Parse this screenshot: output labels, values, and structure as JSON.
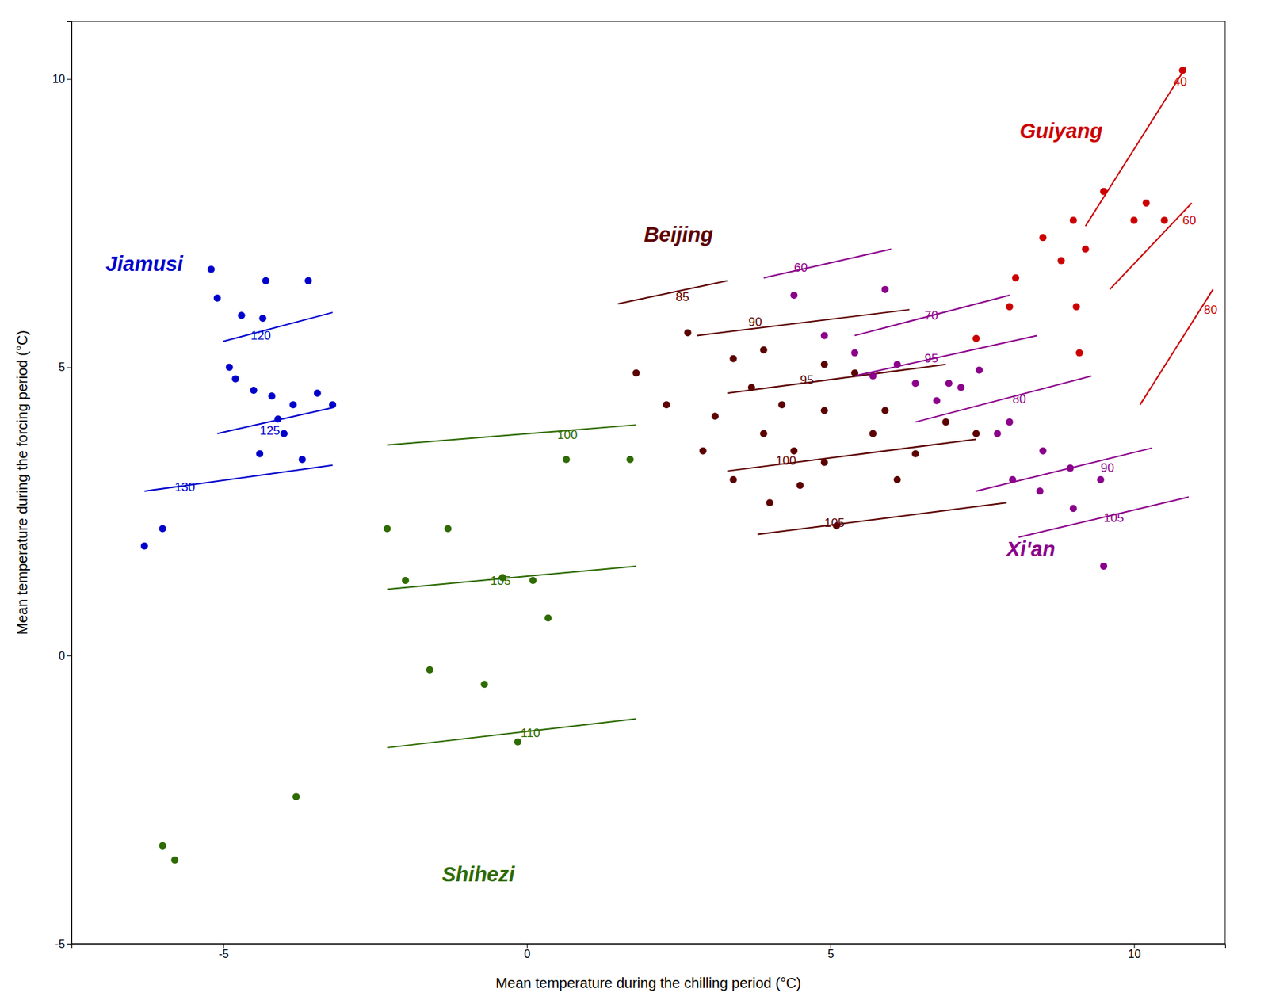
{
  "chart_data": {
    "type": "scatter",
    "xlabel": "Mean temperature during the chilling period (°C)",
    "ylabel": "Mean temperature during the forcing period (°C)",
    "xlim": [
      -7.5,
      11.5
    ],
    "ylim": [
      -5.0,
      11.0
    ],
    "xticks": [
      -5,
      0,
      5,
      10
    ],
    "yticks": [
      -5,
      0,
      5,
      10
    ],
    "grid": false,
    "series": [
      {
        "name": "Jiamusi",
        "color": "#0000CC",
        "label_x": -6.3,
        "label_y": 6.8,
        "x": [
          -6.3,
          -6.0,
          -5.2,
          -5.1,
          -4.9,
          -4.8,
          -4.7,
          -4.5,
          -4.4,
          -4.35,
          -4.3,
          -4.2,
          -4.1,
          -4.0,
          -3.85,
          -3.7,
          -3.6,
          -3.45,
          -3.2
        ],
        "y": [
          1.9,
          2.2,
          6.7,
          6.2,
          5.0,
          4.8,
          5.9,
          4.6,
          3.5,
          5.85,
          6.5,
          4.5,
          4.1,
          3.85,
          4.35,
          3.4,
          6.5,
          4.55,
          4.35
        ],
        "isolines": [
          {
            "label": "120",
            "x": [
              -5.0,
              -3.2
            ],
            "y": [
              5.45,
              5.95
            ],
            "label_x": -4.55,
            "label_y": 5.55
          },
          {
            "label": "125",
            "x": [
              -5.1,
              -3.2
            ],
            "y": [
              3.85,
              4.3
            ],
            "label_x": -4.4,
            "label_y": 3.9
          },
          {
            "label": "130",
            "x": [
              -6.3,
              -3.2
            ],
            "y": [
              2.85,
              3.3
            ],
            "label_x": -5.8,
            "label_y": 2.92
          }
        ]
      },
      {
        "name": "Shihezi",
        "color": "#2E6B00",
        "label_x": -0.8,
        "label_y": -3.8,
        "x": [
          -6.0,
          -5.8,
          -3.8,
          -2.3,
          -2.0,
          -1.6,
          -1.3,
          -0.7,
          -0.4,
          -0.15,
          0.1,
          0.35,
          0.65,
          1.7
        ],
        "y": [
          -3.3,
          -3.55,
          -2.45,
          2.2,
          1.3,
          -0.25,
          2.2,
          -0.5,
          1.35,
          -1.5,
          1.3,
          0.65,
          3.4,
          3.4
        ],
        "isolines": [
          {
            "label": "100",
            "x": [
              -2.3,
              1.8
            ],
            "y": [
              3.65,
              4.0
            ],
            "label_x": 0.5,
            "label_y": 3.83
          },
          {
            "label": "105",
            "x": [
              -2.3,
              1.8
            ],
            "y": [
              1.15,
              1.55
            ],
            "label_x": -0.6,
            "label_y": 1.3
          },
          {
            "label": "110",
            "x": [
              -2.3,
              1.8
            ],
            "y": [
              -1.6,
              -1.1
            ],
            "label_x": -0.1,
            "label_y": -1.35
          }
        ]
      },
      {
        "name": "Beijing",
        "color": "#5C0000",
        "label_x": 2.5,
        "label_y": 7.3,
        "x": [
          1.8,
          2.3,
          2.65,
          2.9,
          3.1,
          3.4,
          3.4,
          3.7,
          3.9,
          3.9,
          4.0,
          4.2,
          4.4,
          4.5,
          4.9,
          4.9,
          4.9,
          5.1,
          5.4,
          5.7,
          5.9,
          6.1,
          6.4,
          6.9,
          7.4
        ],
        "y": [
          4.9,
          4.35,
          5.6,
          3.55,
          4.15,
          5.15,
          3.05,
          4.65,
          5.3,
          3.85,
          2.65,
          4.35,
          3.55,
          2.95,
          5.05,
          4.25,
          3.35,
          2.25,
          4.9,
          3.85,
          4.25,
          3.05,
          3.5,
          4.05,
          3.85
        ],
        "isolines": [
          {
            "label": "85",
            "x": [
              1.5,
              3.3
            ],
            "y": [
              6.1,
              6.5
            ],
            "label_x": 2.45,
            "label_y": 6.22
          },
          {
            "label": "90",
            "x": [
              2.8,
              6.3
            ],
            "y": [
              5.55,
              6.0
            ],
            "label_x": 3.65,
            "label_y": 5.78
          },
          {
            "label": "95",
            "x": [
              3.3,
              6.9
            ],
            "y": [
              4.55,
              5.05
            ],
            "label_x": 4.5,
            "label_y": 4.78
          },
          {
            "label": "100",
            "x": [
              3.3,
              7.4
            ],
            "y": [
              3.2,
              3.75
            ],
            "label_x": 4.1,
            "label_y": 3.38
          },
          {
            "label": "105",
            "x": [
              3.8,
              7.9
            ],
            "y": [
              2.1,
              2.65
            ],
            "label_x": 4.9,
            "label_y": 2.3
          }
        ]
      },
      {
        "name": "Xi'an",
        "color": "#8B008B",
        "label_x": 8.3,
        "label_y": 1.85,
        "x": [
          4.4,
          4.9,
          5.4,
          5.7,
          5.9,
          6.1,
          6.4,
          6.75,
          6.95,
          7.15,
          7.45,
          7.75,
          7.95,
          8.0,
          8.45,
          8.5,
          8.95,
          9.0,
          9.45,
          9.5
        ],
        "y": [
          6.25,
          5.55,
          5.25,
          4.85,
          6.35,
          5.05,
          4.72,
          4.42,
          4.72,
          4.65,
          4.95,
          3.85,
          4.05,
          3.05,
          2.85,
          3.55,
          3.25,
          2.55,
          3.05,
          1.55
        ],
        "isolines": [
          {
            "label": "60",
            "x": [
              3.9,
              6.0
            ],
            "y": [
              6.55,
              7.05
            ],
            "label_x": 4.4,
            "label_y": 6.73
          },
          {
            "label": "70",
            "x": [
              5.4,
              7.95
            ],
            "y": [
              5.55,
              6.25
            ],
            "label_x": 6.55,
            "label_y": 5.9
          },
          {
            "label": "80",
            "x": [
              6.4,
              9.3
            ],
            "y": [
              4.05,
              4.85
            ],
            "label_x": 8.0,
            "label_y": 4.45
          },
          {
            "label": "90",
            "x": [
              7.4,
              10.3
            ],
            "y": [
              2.85,
              3.6
            ],
            "label_x": 9.45,
            "label_y": 3.25
          },
          {
            "label": "95",
            "x": [
              5.4,
              8.4
            ],
            "y": [
              4.85,
              5.55
            ],
            "label_x": 6.55,
            "label_y": 5.15
          },
          {
            "label": "105",
            "x": [
              8.1,
              10.9
            ],
            "y": [
              2.05,
              2.75
            ],
            "label_x": 9.5,
            "label_y": 2.38
          }
        ]
      },
      {
        "name": "Guiyang",
        "color": "#CC0000",
        "label_x": 8.8,
        "label_y": 9.1,
        "x": [
          7.4,
          7.95,
          8.05,
          8.5,
          8.8,
          9.0,
          9.05,
          9.1,
          9.2,
          9.5,
          10.0,
          10.2,
          10.5,
          10.8
        ],
        "y": [
          5.5,
          6.05,
          6.55,
          7.25,
          6.85,
          7.55,
          6.05,
          5.25,
          7.05,
          8.05,
          7.55,
          7.85,
          7.55,
          10.15
        ],
        "isolines": [
          {
            "label": "40",
            "x": [
              9.2,
              10.85
            ],
            "y": [
              7.45,
              10.2
            ],
            "label_x": 10.65,
            "label_y": 9.95
          },
          {
            "label": "60",
            "x": [
              9.6,
              10.95
            ],
            "y": [
              6.35,
              7.85
            ],
            "label_x": 10.8,
            "label_y": 7.55
          },
          {
            "label": "80",
            "x": [
              10.1,
              11.3
            ],
            "y": [
              4.35,
              6.35
            ],
            "label_x": 11.15,
            "label_y": 6.0
          }
        ]
      }
    ]
  }
}
